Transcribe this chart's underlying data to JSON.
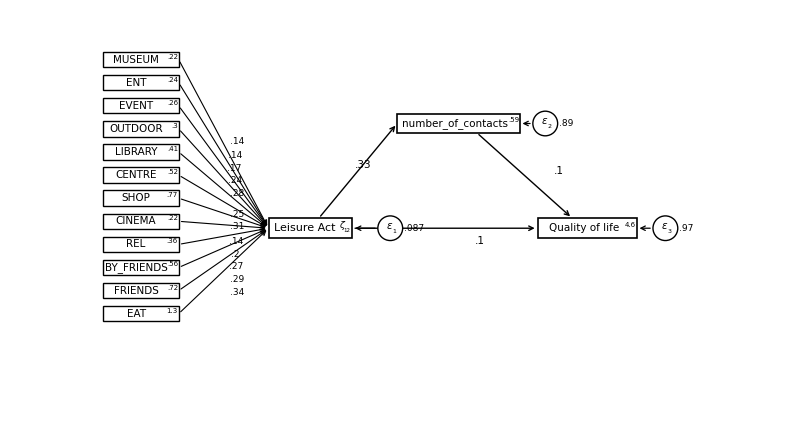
{
  "indicators": [
    {
      "label": "MUSEUM",
      "superscript": ".22"
    },
    {
      "label": "ENT",
      "superscript": ".24"
    },
    {
      "label": "EVENT",
      "superscript": ".26"
    },
    {
      "label": "OUTDOOR",
      "superscript": ".3"
    },
    {
      "label": "LIBRARY",
      "superscript": ".41"
    },
    {
      "label": "CENTRE",
      "superscript": ".52"
    },
    {
      "label": "SHOP",
      "superscript": ".77"
    },
    {
      "label": "CINEMA",
      "superscript": ".22"
    },
    {
      "label": "REL",
      "superscript": ".36"
    },
    {
      "label": "BY_FRIENDS",
      "superscript": ".56"
    },
    {
      "label": "FRIENDS",
      "superscript": ".72"
    },
    {
      "label": "EAT",
      "superscript": "1.3"
    }
  ],
  "path_weights_top": [
    ".14",
    ".14",
    ".17",
    ".24",
    ".28"
  ],
  "path_weights_bot": [
    ".25",
    ".31",
    ".14",
    ".2",
    ".27",
    ".29",
    ".34"
  ],
  "leisure_label": "Leisure Act",
  "e1_val": ".087",
  "contacts_label": "number_of_contacts",
  "contacts_superscript": ".59",
  "e2_val": ".89",
  "qol_label": "Quality of life",
  "qol_superscript": "4.6",
  "e3_val": ".97",
  "path_leisure_contacts": ".33",
  "path_leisure_qol": ".1",
  "path_contacts_qol": ".1",
  "bg_color": "#ffffff"
}
